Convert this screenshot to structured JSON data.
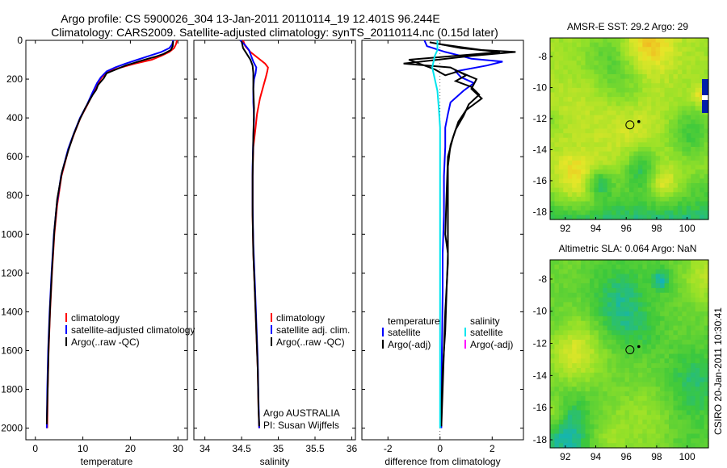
{
  "title": {
    "line1": "Argo profile: CS 5900026_304 13-Jan-2011 20110114_19 12.401S 96.244E",
    "line2": "Climatology: CARS2009. Satellite-adjusted climatology: synTS_20110114.nc (0.15d later)"
  },
  "credit": "CSIRO 20-Jan-2011 10:30:41",
  "colors": {
    "climatology": "#ff0000",
    "satellite": "#0000ff",
    "argo": "#000000",
    "satellite_salinity": "#00e5ee",
    "argo_salinity_adj": "#ff00ff"
  },
  "chart_data": [
    {
      "id": "temperature",
      "type": "line",
      "xlabel": "temperature",
      "xlim": [
        -2,
        32
      ],
      "ylim": [
        2060,
        0
      ],
      "xticks": [
        0,
        10,
        20,
        30
      ],
      "yticks": [
        0,
        200,
        400,
        600,
        800,
        1000,
        1200,
        1400,
        1600,
        1800,
        2000
      ],
      "legend": [
        "climatology",
        "satellite-adjusted climatology",
        "Argo(..raw -QC)"
      ],
      "series": [
        {
          "name": "climatology",
          "color": "climatology",
          "points": [
            [
              29.8,
              0
            ],
            [
              29.6,
              20
            ],
            [
              29.2,
              40
            ],
            [
              28.2,
              60
            ],
            [
              26.5,
              80
            ],
            [
              24.5,
              100
            ],
            [
              21.0,
              120
            ],
            [
              18.0,
              140
            ],
            [
              15.5,
              160
            ],
            [
              14.0,
              190
            ],
            [
              13.2,
              220
            ],
            [
              12.2,
              270
            ],
            [
              11.0,
              330
            ],
            [
              9.5,
              400
            ],
            [
              8.2,
              480
            ],
            [
              7.0,
              560
            ],
            [
              5.5,
              700
            ],
            [
              4.6,
              850
            ],
            [
              4.0,
              1000
            ],
            [
              3.5,
              1200
            ],
            [
              3.1,
              1400
            ],
            [
              2.8,
              1600
            ],
            [
              2.6,
              1800
            ],
            [
              2.5,
              2000
            ]
          ]
        },
        {
          "name": "satellite-adjusted climatology",
          "color": "satellite",
          "points": [
            [
              29.0,
              0
            ],
            [
              28.8,
              20
            ],
            [
              28.2,
              40
            ],
            [
              26.5,
              60
            ],
            [
              24.0,
              80
            ],
            [
              21.5,
              100
            ],
            [
              19.0,
              120
            ],
            [
              16.8,
              140
            ],
            [
              15.0,
              160
            ],
            [
              13.8,
              190
            ],
            [
              13.0,
              220
            ],
            [
              12.0,
              270
            ],
            [
              10.9,
              330
            ],
            [
              9.4,
              400
            ],
            [
              8.1,
              480
            ],
            [
              6.9,
              560
            ],
            [
              5.4,
              700
            ],
            [
              4.5,
              850
            ],
            [
              3.9,
              1000
            ],
            [
              3.4,
              1200
            ],
            [
              3.0,
              1400
            ],
            [
              2.7,
              1600
            ],
            [
              2.5,
              1800
            ],
            [
              2.4,
              2000
            ]
          ]
        },
        {
          "name": "Argo(..raw -QC)",
          "color": "argo",
          "points": [
            [
              29.0,
              5
            ],
            [
              28.9,
              30
            ],
            [
              28.5,
              50
            ],
            [
              27.0,
              70
            ],
            [
              25.2,
              85
            ],
            [
              23.0,
              100
            ],
            [
              21.0,
              115
            ],
            [
              19.0,
              130
            ],
            [
              17.0,
              150
            ],
            [
              15.0,
              170
            ],
            [
              14.4,
              195
            ],
            [
              13.2,
              230
            ],
            [
              12.8,
              255
            ],
            [
              12.1,
              280
            ],
            [
              11.4,
              310
            ],
            [
              10.5,
              350
            ],
            [
              9.3,
              410
            ],
            [
              8.0,
              490
            ],
            [
              6.9,
              570
            ],
            [
              5.6,
              680
            ],
            [
              4.6,
              820
            ],
            [
              4.0,
              980
            ],
            [
              3.5,
              1180
            ],
            [
              3.1,
              1380
            ],
            [
              2.8,
              1580
            ],
            [
              2.6,
              1780
            ],
            [
              2.4,
              1980
            ]
          ]
        }
      ]
    },
    {
      "id": "salinity",
      "type": "line",
      "xlabel": "salinity",
      "xlim": [
        33.85,
        36.05
      ],
      "ylim": [
        2060,
        0
      ],
      "xticks": [
        34,
        34.5,
        35,
        35.5,
        36
      ],
      "legend": [
        "climatology",
        "satellite adj. clim.",
        "Argo(..raw -QC)"
      ],
      "annotation": [
        "Argo AUSTRALIA",
        "PI: Susan Wijffels"
      ],
      "series": [
        {
          "name": "climatology",
          "color": "climatology",
          "points": [
            [
              34.52,
              0
            ],
            [
              34.55,
              30
            ],
            [
              34.62,
              60
            ],
            [
              34.72,
              90
            ],
            [
              34.82,
              120
            ],
            [
              34.86,
              140
            ],
            [
              34.85,
              160
            ],
            [
              34.83,
              190
            ],
            [
              34.8,
              230
            ],
            [
              34.75,
              300
            ],
            [
              34.71,
              380
            ],
            [
              34.69,
              450
            ],
            [
              34.66,
              550
            ],
            [
              34.65,
              700
            ],
            [
              34.65,
              900
            ],
            [
              34.66,
              1100
            ],
            [
              34.68,
              1300
            ],
            [
              34.7,
              1500
            ],
            [
              34.72,
              1700
            ],
            [
              34.73,
              1900
            ],
            [
              34.74,
              2000
            ]
          ]
        },
        {
          "name": "satellite adj. clim.",
          "color": "satellite",
          "points": [
            [
              34.48,
              0
            ],
            [
              34.55,
              25
            ],
            [
              34.6,
              50
            ],
            [
              34.63,
              80
            ],
            [
              34.66,
              110
            ],
            [
              34.7,
              140
            ],
            [
              34.69,
              170
            ],
            [
              34.67,
              200
            ],
            [
              34.66,
              250
            ],
            [
              34.66,
              320
            ],
            [
              34.67,
              400
            ],
            [
              34.66,
              500
            ],
            [
              34.65,
              650
            ],
            [
              34.65,
              850
            ],
            [
              34.66,
              1050
            ],
            [
              34.68,
              1250
            ],
            [
              34.7,
              1450
            ],
            [
              34.72,
              1650
            ],
            [
              34.73,
              1850
            ],
            [
              34.74,
              2000
            ]
          ]
        },
        {
          "name": "Argo(..raw -QC)",
          "color": "argo",
          "points": [
            [
              34.5,
              5
            ],
            [
              34.52,
              40
            ],
            [
              34.57,
              70
            ],
            [
              34.62,
              100
            ],
            [
              34.65,
              130
            ],
            [
              34.66,
              170
            ],
            [
              34.66,
              250
            ],
            [
              34.67,
              350
            ],
            [
              34.66,
              500
            ],
            [
              34.65,
              700
            ],
            [
              34.65,
              900
            ],
            [
              34.66,
              1100
            ],
            [
              34.68,
              1300
            ],
            [
              34.7,
              1500
            ],
            [
              34.72,
              1700
            ],
            [
              34.73,
              1900
            ],
            [
              34.74,
              1990
            ]
          ]
        }
      ]
    },
    {
      "id": "difference",
      "type": "line",
      "xlabel": "difference from climatology",
      "xlim": [
        -3.0,
        3.2
      ],
      "ylim": [
        2060,
        0
      ],
      "xticks": [
        -2,
        0,
        2
      ],
      "legend": {
        "temperature_heading": "temperature",
        "salinity_heading": "salinity",
        "temperature": [
          "satellite",
          "Argo(-adj)"
        ],
        "salinity": [
          "satellite",
          "Argo(-adj)"
        ]
      },
      "series": [
        {
          "name": "temperature satellite",
          "color": "satellite",
          "points": [
            [
              -0.6,
              0
            ],
            [
              -0.5,
              30
            ],
            [
              0.2,
              60
            ],
            [
              0.8,
              80
            ],
            [
              1.2,
              95
            ],
            [
              2.4,
              110
            ],
            [
              1.8,
              130
            ],
            [
              0.6,
              160
            ],
            [
              0.8,
              190
            ],
            [
              1.3,
              220
            ],
            [
              0.9,
              260
            ],
            [
              0.4,
              320
            ],
            [
              0.3,
              380
            ],
            [
              0.2,
              450
            ],
            [
              0.2,
              550
            ],
            [
              0.15,
              700
            ],
            [
              0.15,
              900
            ],
            [
              0.1,
              1100
            ],
            [
              0.1,
              1300
            ],
            [
              0.08,
              1500
            ],
            [
              0.06,
              1700
            ],
            [
              0.05,
              1900
            ],
            [
              0.05,
              2000
            ]
          ]
        },
        {
          "name": "temperature Argo(-adj)",
          "color": "argo",
          "points": [
            [
              -0.4,
              10
            ],
            [
              0.8,
              40
            ],
            [
              2.3,
              60
            ],
            [
              1.5,
              70
            ],
            [
              -1.2,
              100
            ],
            [
              -0.2,
              150
            ],
            [
              0.2,
              180
            ],
            [
              0.7,
              160
            ],
            [
              1.4,
              200
            ],
            [
              1.2,
              250
            ],
            [
              1.6,
              300
            ],
            [
              1.0,
              360
            ],
            [
              0.7,
              420
            ],
            [
              0.5,
              500
            ],
            [
              0.3,
              600
            ],
            [
              0.25,
              800
            ],
            [
              0.2,
              1000
            ],
            [
              0.3,
              1100
            ],
            [
              0.25,
              1300
            ],
            [
              0.2,
              1500
            ],
            [
              0.1,
              1700
            ],
            [
              0.05,
              1900
            ],
            [
              0.05,
              1990
            ]
          ]
        },
        {
          "name": "temperature Argo raw",
          "color": "argo",
          "points": [
            [
              0.0,
              20
            ],
            [
              1.6,
              50
            ],
            [
              2.9,
              60
            ],
            [
              1.2,
              80
            ],
            [
              -1.4,
              120
            ],
            [
              0.4,
              140
            ],
            [
              1.0,
              180
            ],
            [
              0.6,
              210
            ],
            [
              1.2,
              240
            ],
            [
              1.5,
              280
            ],
            [
              1.1,
              330
            ],
            [
              0.9,
              390
            ],
            [
              0.6,
              460
            ],
            [
              0.4,
              540
            ],
            [
              0.3,
              650
            ],
            [
              0.3,
              900
            ],
            [
              0.3,
              1150
            ],
            [
              0.2,
              1400
            ],
            [
              0.15,
              1600
            ],
            [
              0.1,
              1800
            ],
            [
              0.05,
              1990
            ]
          ]
        },
        {
          "name": "salinity satellite",
          "color": "satellite_salinity",
          "points": [
            [
              -0.1,
              0
            ],
            [
              -0.1,
              50
            ],
            [
              -0.2,
              80
            ],
            [
              -0.3,
              140
            ],
            [
              -0.2,
              200
            ],
            [
              -0.1,
              260
            ],
            [
              -0.05,
              350
            ],
            [
              0.0,
              450
            ],
            [
              0.0,
              600
            ],
            [
              0.0,
              800
            ],
            [
              0.0,
              1000
            ],
            [
              0.0,
              1200
            ],
            [
              0.0,
              1400
            ],
            [
              0.0,
              1600
            ],
            [
              0.0,
              1800
            ],
            [
              0.0,
              2000
            ]
          ]
        }
      ]
    },
    {
      "id": "sst-map",
      "type": "heatmap",
      "title": "AMSR-E SST: 29.2 Argo: 29",
      "xlim": [
        91,
        101.4
      ],
      "ylim": [
        -18.5,
        -6.8
      ],
      "xticks": [
        92,
        94,
        96,
        98,
        100
      ],
      "yticks": [
        -8,
        -10,
        -12,
        -14,
        -16,
        -18
      ],
      "marker": {
        "lon": 96.244,
        "lat": -12.401
      }
    },
    {
      "id": "sla-map",
      "type": "heatmap",
      "title": "Altimetric SLA: 0.064 Argo: NaN",
      "xlim": [
        91,
        101.4
      ],
      "ylim": [
        -18.5,
        -6.8
      ],
      "xticks": [
        92,
        94,
        96,
        98,
        100
      ],
      "yticks": [
        -8,
        -10,
        -12,
        -14,
        -16,
        -18
      ],
      "marker": {
        "lon": 96.244,
        "lat": -12.401
      }
    }
  ]
}
